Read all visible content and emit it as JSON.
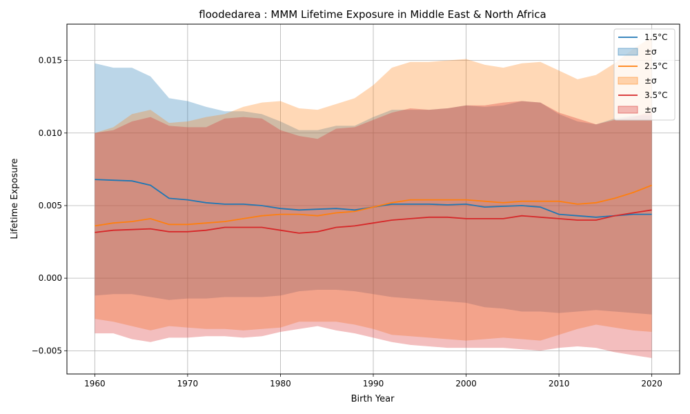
{
  "chart_data": {
    "type": "line",
    "title": "floodedarea : MMM Lifetime Exposure in Middle East & North Africa",
    "xlabel": "Birth Year",
    "ylabel": "Lifetime Exposure",
    "xlim": [
      1957,
      2023
    ],
    "ylim": [
      -0.0066,
      0.0175
    ],
    "grid": true,
    "legend_position": "top-right",
    "x_ticks": [
      1960,
      1970,
      1980,
      1990,
      2000,
      2010,
      2020
    ],
    "x_tick_labels": [
      "1960",
      "1970",
      "1980",
      "1990",
      "2000",
      "2010",
      "2020"
    ],
    "y_ticks": [
      -0.005,
      0.0,
      0.005,
      0.01,
      0.015
    ],
    "y_tick_labels": [
      "−0.005",
      "0.000",
      "0.005",
      "0.010",
      "0.015"
    ],
    "x": [
      1960,
      1962,
      1964,
      1966,
      1968,
      1970,
      1972,
      1974,
      1976,
      1978,
      1980,
      1982,
      1984,
      1986,
      1988,
      1990,
      1992,
      1994,
      1996,
      1998,
      2000,
      2002,
      2004,
      2006,
      2008,
      2010,
      2012,
      2014,
      2016,
      2018,
      2020
    ],
    "series": [
      {
        "name": "1.5°C",
        "band_label": "±σ",
        "color": "#1f77b4",
        "band_color": "#1f77b4",
        "band_opacity": 0.3,
        "values": [
          0.0068,
          0.00675,
          0.0067,
          0.0064,
          0.0055,
          0.0054,
          0.0052,
          0.0051,
          0.0051,
          0.005,
          0.0048,
          0.0047,
          0.00475,
          0.0048,
          0.0047,
          0.0049,
          0.0051,
          0.0051,
          0.0051,
          0.00505,
          0.0051,
          0.0049,
          0.00495,
          0.005,
          0.0049,
          0.0044,
          0.0043,
          0.0042,
          0.0043,
          0.0044,
          0.0044
        ],
        "upper": [
          0.0148,
          0.0145,
          0.0145,
          0.0139,
          0.0124,
          0.0122,
          0.0118,
          0.0115,
          0.0115,
          0.0113,
          0.0108,
          0.0102,
          0.0102,
          0.0105,
          0.0105,
          0.0111,
          0.0116,
          0.0116,
          0.0116,
          0.0117,
          0.0119,
          0.0118,
          0.0119,
          0.0122,
          0.0121,
          0.0113,
          0.0108,
          0.0106,
          0.011,
          0.0112,
          0.0112
        ],
        "lower": [
          -0.0012,
          -0.0011,
          -0.0011,
          -0.0013,
          -0.0015,
          -0.0014,
          -0.0014,
          -0.0013,
          -0.0013,
          -0.0013,
          -0.0012,
          -0.0009,
          -0.0008,
          -0.0008,
          -0.0009,
          -0.0011,
          -0.0013,
          -0.0014,
          -0.0015,
          -0.0016,
          -0.0017,
          -0.002,
          -0.0021,
          -0.0023,
          -0.0023,
          -0.0024,
          -0.0023,
          -0.0022,
          -0.0023,
          -0.0024,
          -0.0025
        ]
      },
      {
        "name": "2.5°C",
        "band_label": "±σ",
        "color": "#ff7f0e",
        "band_color": "#ff7f0e",
        "band_opacity": 0.3,
        "values": [
          0.0036,
          0.0038,
          0.0039,
          0.0041,
          0.0037,
          0.0037,
          0.0038,
          0.0039,
          0.0041,
          0.0043,
          0.0044,
          0.0044,
          0.0043,
          0.0045,
          0.0046,
          0.0049,
          0.0052,
          0.0054,
          0.0054,
          0.0054,
          0.0054,
          0.0053,
          0.0052,
          0.0053,
          0.0053,
          0.0053,
          0.0051,
          0.0052,
          0.0055,
          0.0059,
          0.0064
        ],
        "upper": [
          0.01,
          0.0104,
          0.0113,
          0.0116,
          0.0107,
          0.0108,
          0.0111,
          0.0113,
          0.0118,
          0.0121,
          0.0122,
          0.0117,
          0.0116,
          0.012,
          0.0124,
          0.0133,
          0.0145,
          0.0149,
          0.0149,
          0.015,
          0.0151,
          0.0147,
          0.0145,
          0.0148,
          0.0149,
          0.0143,
          0.0137,
          0.014,
          0.0148,
          0.0158,
          0.0166
        ],
        "lower": [
          -0.0028,
          -0.003,
          -0.0033,
          -0.0036,
          -0.0033,
          -0.0034,
          -0.0035,
          -0.0035,
          -0.0036,
          -0.0035,
          -0.0034,
          -0.003,
          -0.003,
          -0.003,
          -0.0032,
          -0.0035,
          -0.0039,
          -0.004,
          -0.0041,
          -0.0042,
          -0.0043,
          -0.0042,
          -0.0041,
          -0.0042,
          -0.0043,
          -0.0039,
          -0.0035,
          -0.0032,
          -0.0034,
          -0.0036,
          -0.0037
        ]
      },
      {
        "name": "3.5°C",
        "band_label": "±σ",
        "color": "#d62728",
        "band_color": "#d62728",
        "band_opacity": 0.3,
        "values": [
          0.00315,
          0.0033,
          0.00335,
          0.0034,
          0.0032,
          0.0032,
          0.0033,
          0.0035,
          0.0035,
          0.0035,
          0.0033,
          0.0031,
          0.0032,
          0.0035,
          0.0036,
          0.0038,
          0.004,
          0.0041,
          0.0042,
          0.0042,
          0.0041,
          0.0041,
          0.0041,
          0.0043,
          0.0042,
          0.0041,
          0.004,
          0.004,
          0.0043,
          0.0045,
          0.0047
        ],
        "upper": [
          0.01,
          0.0102,
          0.0108,
          0.0111,
          0.0105,
          0.0104,
          0.0104,
          0.011,
          0.0111,
          0.011,
          0.0102,
          0.0098,
          0.0096,
          0.0103,
          0.0104,
          0.0109,
          0.0114,
          0.0117,
          0.0116,
          0.0117,
          0.0119,
          0.0119,
          0.0121,
          0.0122,
          0.0121,
          0.0114,
          0.011,
          0.0106,
          0.0109,
          0.0111,
          0.0115
        ],
        "lower": [
          -0.0038,
          -0.0038,
          -0.0042,
          -0.0044,
          -0.0041,
          -0.0041,
          -0.004,
          -0.004,
          -0.0041,
          -0.004,
          -0.0037,
          -0.0035,
          -0.0033,
          -0.0036,
          -0.0038,
          -0.0041,
          -0.0044,
          -0.0046,
          -0.0047,
          -0.0048,
          -0.0048,
          -0.0048,
          -0.0048,
          -0.0049,
          -0.005,
          -0.0048,
          -0.0047,
          -0.0048,
          -0.0051,
          -0.0053,
          -0.0055
        ]
      }
    ]
  }
}
